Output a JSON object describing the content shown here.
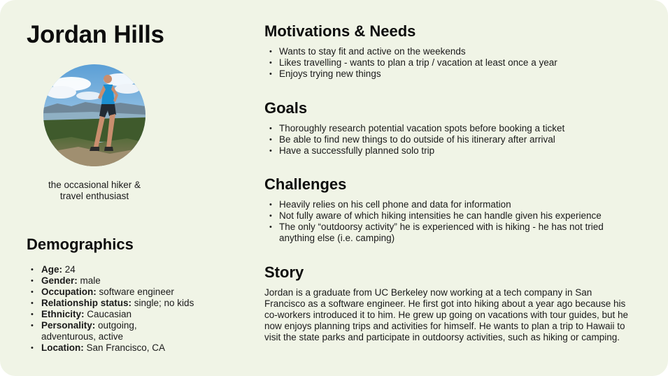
{
  "persona": {
    "name": "Jordan Hills",
    "tagline_line1": "the occasional hiker &",
    "tagline_line2": "travel enthusiast",
    "photo_icon": "hiker-photo"
  },
  "demographics": {
    "heading": "Demographics",
    "items": [
      {
        "label": "Age:",
        "value": " 24"
      },
      {
        "label": "Gender:",
        "value": " male"
      },
      {
        "label": "Occupation:",
        "value": " software engineer"
      },
      {
        "label": "Relationship status:",
        "value": " single; no kids"
      },
      {
        "label": "Ethnicity:",
        "value": " Caucasian"
      },
      {
        "label": "Personality:",
        "value": " outgoing, adventurous, active"
      },
      {
        "label": "Location:",
        "value": " San Francisco, CA"
      }
    ]
  },
  "motivations": {
    "heading": "Motivations & Needs",
    "items": [
      "Wants to stay fit and active on the weekends",
      "Likes travelling - wants to plan a trip / vacation at least once a year",
      "Enjoys trying new things"
    ]
  },
  "goals": {
    "heading": "Goals",
    "items": [
      "Thoroughly research potential vacation spots before booking a ticket",
      "Be able to find new things to do outside of his itinerary after arrival",
      "Have a successfully planned solo trip"
    ]
  },
  "challenges": {
    "heading": "Challenges",
    "items": [
      "Heavily relies on his cell phone and data for information",
      "Not fully aware of which hiking intensities he can handle given his experience",
      "The only “outdoorsy activity” he is experienced with is hiking - he has not tried anything else (i.e. camping)"
    ]
  },
  "story": {
    "heading": "Story",
    "text": "Jordan is a graduate from UC Berkeley now working at a tech company in San Francisco as a software engineer. He first got into hiking about a year ago because his co-workers introduced it to him. He grew up going on vacations with tour guides, but he now enjoys planning trips and activities for himself. He wants to plan a trip to Hawaii to visit the state parks and participate in outdoorsy activities, such as hiking or camping."
  },
  "colors": {
    "card_background": "#f0f4e6",
    "text": "#111111"
  }
}
